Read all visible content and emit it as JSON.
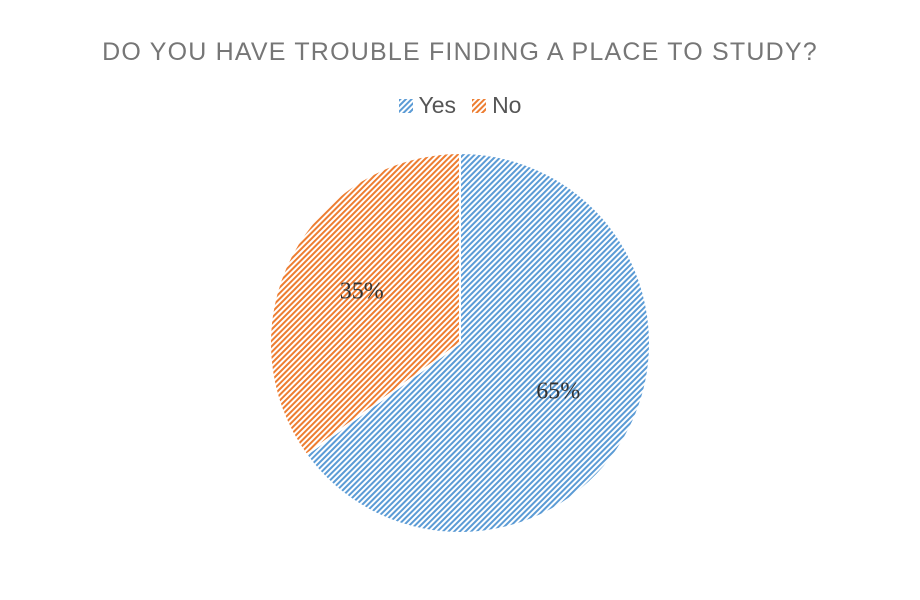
{
  "chart_data": {
    "type": "pie",
    "title": "DO YOU HAVE TROUBLE FINDING A PLACE TO STUDY?",
    "legend_position": "top",
    "categories": [
      "Yes",
      "No"
    ],
    "values": [
      65,
      35
    ],
    "data_labels": [
      "65%",
      "35%"
    ],
    "colors": [
      "#5b9bd5",
      "#ed7d31"
    ],
    "fill_pattern": "diagonal-hatch"
  }
}
